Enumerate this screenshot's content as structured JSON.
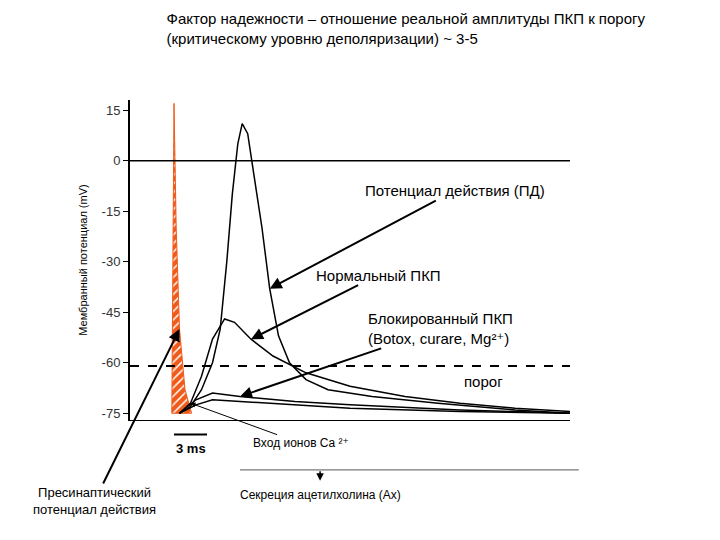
{
  "chart_data": {
    "type": "line",
    "title": [
      "Фактор надежности – отношение реальной амплитуды ПКП к порогу",
      "(критическому уровню деполяризации) ~ 3-5"
    ],
    "y_label": "Мембранный потенциал (mV)",
    "xlim": [
      0,
      40
    ],
    "ylim": [
      -77,
      18
    ],
    "yticks": [
      15,
      0,
      -15,
      -30,
      -45,
      -60,
      -75
    ],
    "tick_labels": "y",
    "grid": false,
    "series": [
      {
        "name": "Пресинаптический\nпотенциал действия",
        "type": "area",
        "color": "#f05a1a",
        "x": [
          3.8,
          4.0,
          4.2,
          4.5,
          5.0,
          5.6,
          3.8
        ],
        "values": [
          -75,
          17,
          -20,
          -50,
          -68,
          -75,
          -75
        ]
      },
      {
        "color": "#000000",
        "line_style": "solid",
        "x": [
          0,
          40
        ],
        "values": [
          0,
          0
        ]
      },
      {
        "name": "порог",
        "color": "#000000",
        "line_style": "dashed",
        "x": [
          0,
          40
        ],
        "values": [
          -61,
          -61
        ]
      },
      {
        "name": "Потенциал действия (ПД)",
        "color": "#000000",
        "line_style": "solid",
        "x": [
          4.5,
          5.5,
          6.5,
          7.5,
          8.2,
          8.8,
          9.3,
          9.8,
          10.2,
          10.7,
          11.3,
          12,
          12.7,
          13.5,
          14.5,
          16,
          18,
          22,
          28,
          35,
          40
        ],
        "values": [
          -75,
          -73,
          -68,
          -60,
          -50,
          -30,
          -10,
          5,
          11,
          8,
          -5,
          -20,
          -38,
          -52,
          -60,
          -65,
          -68,
          -70,
          -72,
          -74,
          -75
        ]
      },
      {
        "name": "Нормальный ПКП",
        "color": "#000000",
        "line_style": "solid",
        "x": [
          4.5,
          5.5,
          6.5,
          7.5,
          8.6,
          9.5,
          11,
          13,
          16,
          20,
          25,
          30,
          35,
          40
        ],
        "values": [
          -75,
          -72,
          -64,
          -53,
          -47,
          -48,
          -53,
          -58,
          -63,
          -67,
          -70,
          -72,
          -73.5,
          -74.5
        ]
      },
      {
        "name": "Блокированный ПКП\n(Botox, curare, Mg²⁺)",
        "color": "#000000",
        "line_style": "solid",
        "x": [
          4.5,
          6,
          7.5,
          10,
          15,
          20,
          30,
          40
        ],
        "values": [
          -75,
          -71,
          -69,
          -70,
          -71.5,
          -72.5,
          -74,
          -75
        ]
      },
      {
        "color": "#000000",
        "line_style": "solid",
        "x": [
          4.5,
          6,
          7.5,
          10,
          15,
          20,
          30,
          40
        ],
        "values": [
          -75,
          -72.5,
          -71,
          -71.5,
          -72.5,
          -73.5,
          -74.5,
          -75
        ]
      }
    ],
    "scale_bar": {
      "value": 3,
      "label": "3 ms"
    },
    "annotations": [
      "Вход ионов Ca ²⁺",
      "Секреция ацетилхолина (Ах)"
    ]
  }
}
